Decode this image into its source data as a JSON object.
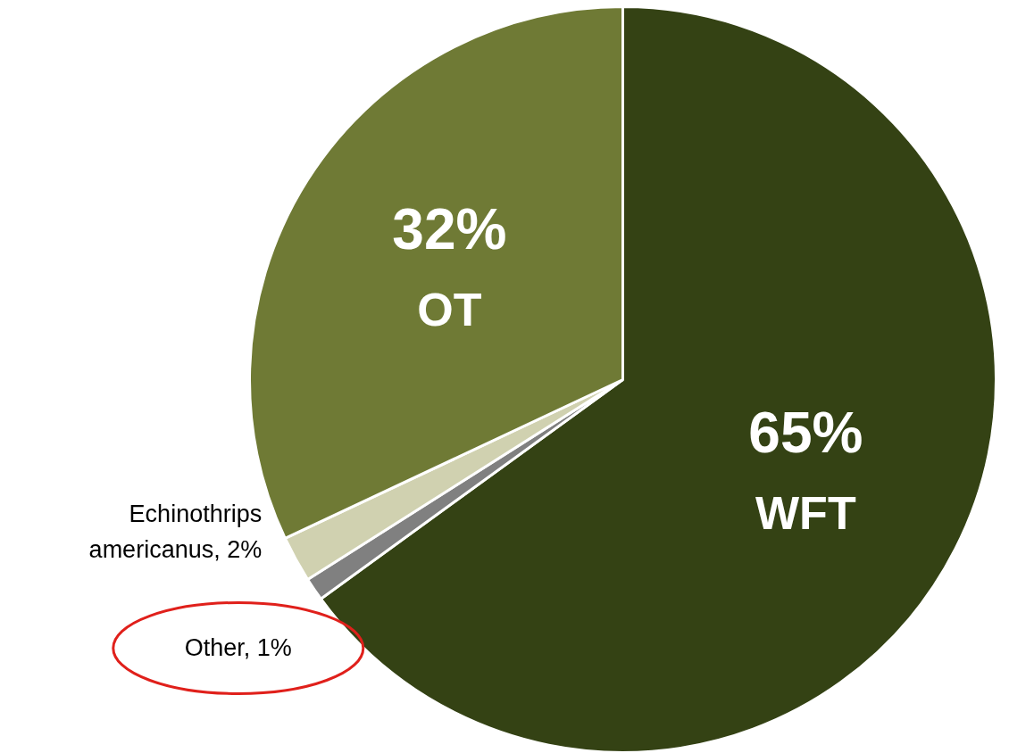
{
  "chart_data": {
    "type": "pie",
    "categories": [
      "WFT",
      "Other",
      "Echinothrips americanus",
      "OT"
    ],
    "values": [
      65,
      1,
      2,
      32
    ],
    "value_labels": [
      "65%",
      "1%",
      "2%",
      "32%"
    ],
    "colors": [
      "#344214",
      "#808080",
      "#d0d1b0",
      "#6f7a35"
    ],
    "data_labels": true
  }
}
